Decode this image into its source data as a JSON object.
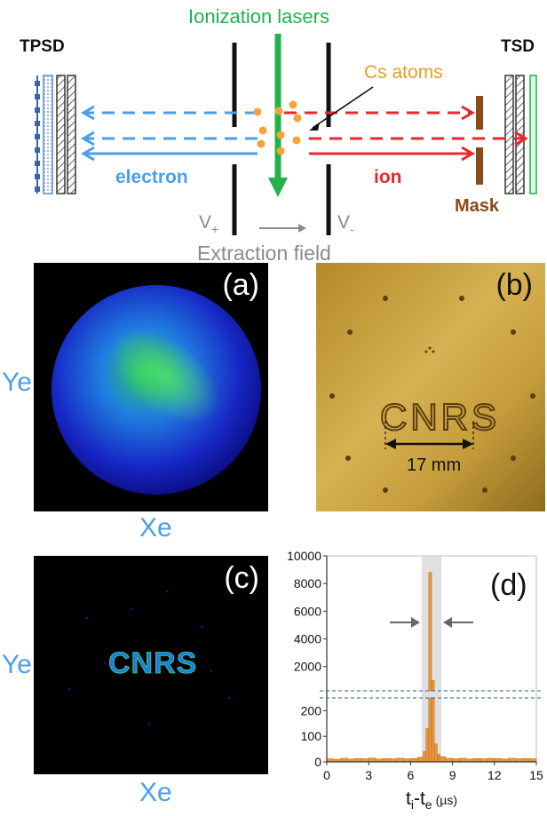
{
  "schematic": {
    "ionization_lasers": "Ionization lasers",
    "tpsd": "TPSD",
    "tsd": "TSD",
    "cs_atoms": "Cs atoms",
    "electron": "electron",
    "ion": "ion",
    "mask": "Mask",
    "v_plus_base": "V",
    "v_plus_sub": "+",
    "v_minus_base": "V",
    "v_minus_sub": "-",
    "extraction_field": "Extraction field",
    "colors": {
      "laser": "#22b14c",
      "cs": "#f2a33a",
      "electron": "#4a9fe8",
      "ion": "#e8282c",
      "mask": "#8b4a16",
      "gray_text": "#8a8a8a"
    }
  },
  "panels": {
    "a_label": "(a)",
    "b_label": "(b)",
    "c_label": "(c)",
    "d_label": "(d)",
    "ye": "Ye",
    "xe": "Xe",
    "scale_text": "17 mm",
    "plate_text": "CNRS",
    "detector_text": "CNRS"
  },
  "chart_data": {
    "type": "bar",
    "xlabel_main": "t",
    "xlabel_sub1": "i",
    "xlabel_mid": "-t",
    "xlabel_sub2": "e",
    "xlabel_unit": "(µs)",
    "x_ticks": [
      "0",
      "3",
      "6",
      "9",
      "12",
      "15"
    ],
    "xlim": [
      0,
      15
    ],
    "y_upper_ticks": [
      "10000",
      "8000",
      "6000",
      "4000",
      "2000"
    ],
    "y_upper_range": [
      250,
      10000
    ],
    "y_lower_ticks": [
      "200",
      "100",
      "0"
    ],
    "y_lower_range": [
      0,
      250
    ],
    "highlight_range": [
      6.8,
      8.2
    ],
    "bar_color": "#e8963c",
    "bins": [
      {
        "t": 0.25,
        "v": 12
      },
      {
        "t": 0.75,
        "v": 10
      },
      {
        "t": 1.25,
        "v": 14
      },
      {
        "t": 1.75,
        "v": 11
      },
      {
        "t": 2.25,
        "v": 13
      },
      {
        "t": 2.75,
        "v": 12
      },
      {
        "t": 3.25,
        "v": 15
      },
      {
        "t": 3.75,
        "v": 11
      },
      {
        "t": 4.25,
        "v": 13
      },
      {
        "t": 4.75,
        "v": 12
      },
      {
        "t": 5.25,
        "v": 14
      },
      {
        "t": 5.75,
        "v": 12
      },
      {
        "t": 6.25,
        "v": 13
      },
      {
        "t": 6.75,
        "v": 18
      },
      {
        "t": 7.0,
        "v": 40
      },
      {
        "t": 7.2,
        "v": 130
      },
      {
        "t": 7.4,
        "v": 8800
      },
      {
        "t": 7.6,
        "v": 1000
      },
      {
        "t": 7.8,
        "v": 70
      },
      {
        "t": 8.0,
        "v": 30
      },
      {
        "t": 8.25,
        "v": 20
      },
      {
        "t": 8.75,
        "v": 14
      },
      {
        "t": 9.25,
        "v": 12
      },
      {
        "t": 9.75,
        "v": 14
      },
      {
        "t": 10.25,
        "v": 11
      },
      {
        "t": 10.75,
        "v": 13
      },
      {
        "t": 11.25,
        "v": 12
      },
      {
        "t": 11.75,
        "v": 14
      },
      {
        "t": 12.25,
        "v": 13
      },
      {
        "t": 12.75,
        "v": 11
      },
      {
        "t": 13.25,
        "v": 14
      },
      {
        "t": 13.75,
        "v": 12
      },
      {
        "t": 14.25,
        "v": 13
      },
      {
        "t": 14.75,
        "v": 12
      }
    ]
  }
}
